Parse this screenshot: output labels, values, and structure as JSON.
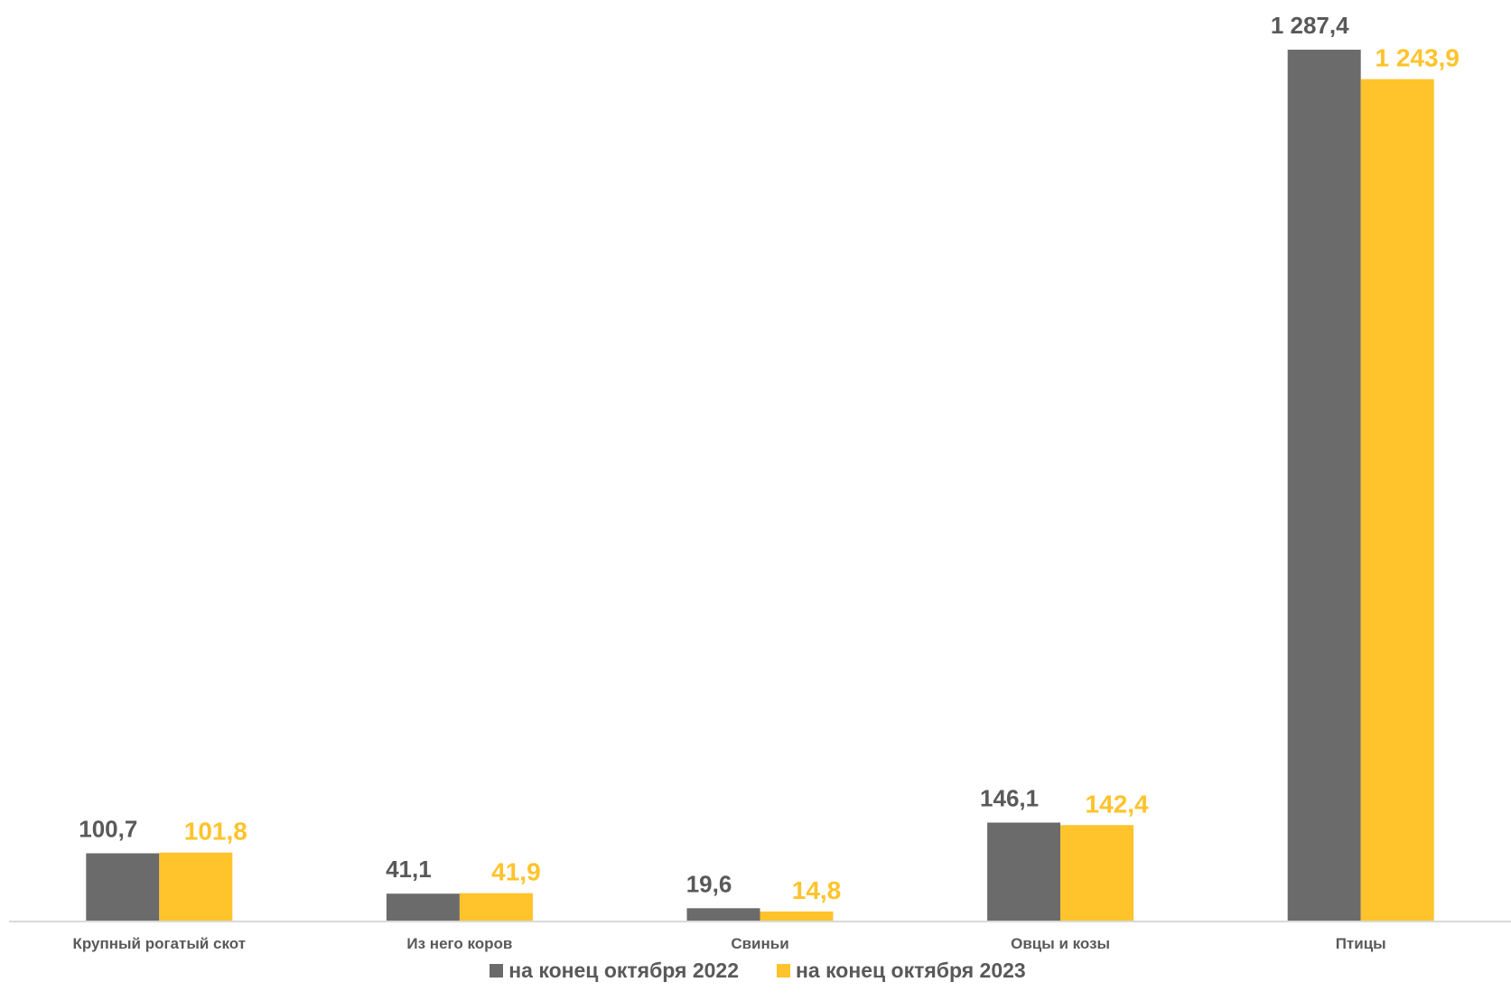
{
  "chart_data": {
    "type": "bar",
    "categories": [
      "Крупный рогатый скот",
      "Из него коров",
      "Свиньи",
      "Овцы и козы",
      "Птицы"
    ],
    "series": [
      {
        "name": "на конец октября 2022",
        "values": [
          100.7,
          41.1,
          19.6,
          146.1,
          1287.4
        ],
        "labels": [
          "100,7",
          "41,1",
          "19,6",
          "146,1",
          "1 287,4"
        ],
        "color": "#6B6B6B"
      },
      {
        "name": "на конец октября 2023",
        "values": [
          101.8,
          41.9,
          14.8,
          142.4,
          1243.9
        ],
        "labels": [
          "101,8",
          "41,9",
          "14,8",
          "142,4",
          "1 243,9"
        ],
        "color": "#FFC32B"
      }
    ],
    "legend_position": "bottom",
    "grid": false
  }
}
